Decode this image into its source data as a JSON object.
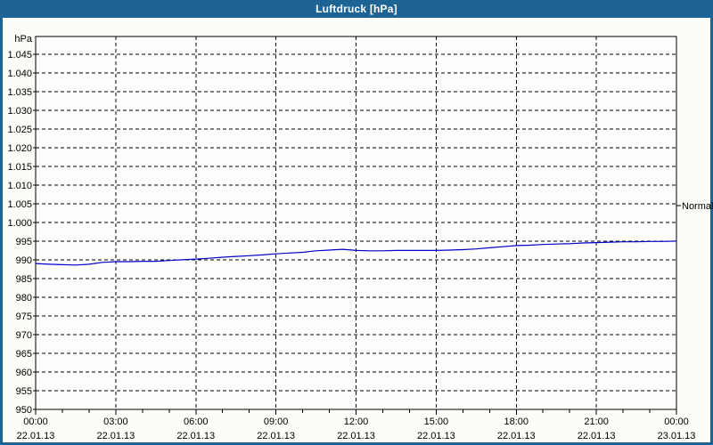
{
  "window": {
    "title": "Luftdruck [hPa]"
  },
  "colors": {
    "titlebar_bg": "#1d6494",
    "frame": "#1d6494",
    "background": "#fbfdf8",
    "plot_bg": "#fdfefb",
    "grid": "#000000",
    "text": "#000000",
    "title_text": "#ffffff",
    "series_line": "#0000c8"
  },
  "chart_data": {
    "type": "line",
    "title": "Luftdruck [hPa]",
    "y_axis_unit": "hPa",
    "grid_style": "dashed",
    "legend_position": "none",
    "ylim": [
      950,
      1049.7
    ],
    "y_ticks": [
      {
        "value": 1045,
        "label": "1.045"
      },
      {
        "value": 1040,
        "label": "1.040"
      },
      {
        "value": 1035,
        "label": "1.035"
      },
      {
        "value": 1030,
        "label": "1.030"
      },
      {
        "value": 1025,
        "label": "1.025"
      },
      {
        "value": 1020,
        "label": "1.020"
      },
      {
        "value": 1015,
        "label": "1.015"
      },
      {
        "value": 1010,
        "label": "1.010"
      },
      {
        "value": 1005,
        "label": "1.005"
      },
      {
        "value": 1000,
        "label": "1.000"
      },
      {
        "value": 995,
        "label": "995"
      },
      {
        "value": 990,
        "label": "990"
      },
      {
        "value": 985,
        "label": "985"
      },
      {
        "value": 980,
        "label": "980"
      },
      {
        "value": 975,
        "label": "975"
      },
      {
        "value": 970,
        "label": "970"
      },
      {
        "value": 965,
        "label": "965"
      },
      {
        "value": 960,
        "label": "960"
      },
      {
        "value": 955,
        "label": "955"
      },
      {
        "value": 950,
        "label": "950"
      }
    ],
    "xlim_hours": [
      0,
      24
    ],
    "minor_tick_interval_hours": 1,
    "major_tick_interval_hours": 3,
    "x_ticks": [
      {
        "hour": 0,
        "time": "00:00",
        "date": "22.01.13"
      },
      {
        "hour": 3,
        "time": "03:00",
        "date": "22.01.13"
      },
      {
        "hour": 6,
        "time": "06:00",
        "date": "22.01.13"
      },
      {
        "hour": 9,
        "time": "09:00",
        "date": "22.01.13"
      },
      {
        "hour": 12,
        "time": "12:00",
        "date": "22.01.13"
      },
      {
        "hour": 15,
        "time": "15:00",
        "date": "22.01.13"
      },
      {
        "hour": 18,
        "time": "18:00",
        "date": "22.01.13"
      },
      {
        "hour": 21,
        "time": "21:00",
        "date": "22.01.13"
      },
      {
        "hour": 24,
        "time": "00:00",
        "date": "23.01.13"
      }
    ],
    "normal_marker": {
      "label": "Normal",
      "value": 1004.5
    },
    "series": [
      {
        "name": "Luftdruck",
        "x_hours": [
          0,
          0.5,
          1,
          1.5,
          2,
          2.5,
          3,
          3.5,
          4,
          4.5,
          5,
          5.5,
          6,
          6.5,
          7,
          7.5,
          8,
          8.5,
          9,
          9.5,
          10,
          10.5,
          11,
          11.5,
          12,
          12.5,
          13,
          13.5,
          14,
          14.5,
          15,
          15.5,
          16,
          16.5,
          17,
          17.5,
          18,
          18.5,
          19,
          19.5,
          20,
          20.5,
          21,
          21.5,
          22,
          22.5,
          23,
          23.5,
          24
        ],
        "values": [
          989.0,
          988.8,
          988.7,
          988.6,
          988.8,
          989.3,
          989.5,
          989.5,
          989.6,
          989.6,
          989.8,
          990.0,
          990.2,
          990.4,
          990.7,
          990.9,
          991.1,
          991.3,
          991.6,
          991.8,
          992.0,
          992.4,
          992.6,
          992.8,
          992.5,
          992.4,
          992.4,
          992.5,
          992.5,
          992.5,
          992.5,
          992.6,
          992.7,
          992.9,
          993.2,
          993.5,
          993.8,
          993.9,
          994.1,
          994.2,
          994.3,
          994.5,
          994.6,
          994.7,
          994.8,
          994.8,
          994.9,
          994.9,
          995.0
        ]
      }
    ]
  }
}
